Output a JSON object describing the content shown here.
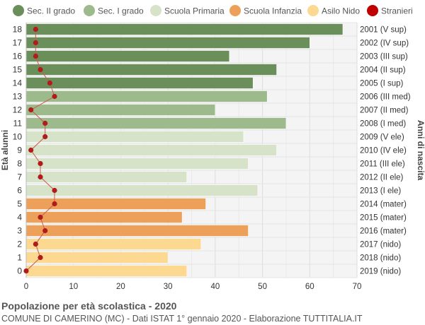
{
  "chart_data": {
    "type": "bar",
    "orientation": "horizontal",
    "title": "Popolazione per età scolastica - 2020",
    "subtitle": "COMUNE DI CAMERINO (MC) - Dati ISTAT 1° gennaio 2020 - Elaborazione TUTTITALIA.IT",
    "ylabel_left": "Età alunni",
    "ylabel_right": "Anni di nascita",
    "xlim": [
      0,
      70
    ],
    "xticks": [
      0,
      10,
      20,
      30,
      40,
      50,
      60,
      70
    ],
    "grid": true,
    "legend_position": "top",
    "legend": [
      {
        "name": "Sec. II grado",
        "color": "#6b8f5a"
      },
      {
        "name": "Sec. I grado",
        "color": "#9dba8c"
      },
      {
        "name": "Scuola Primaria",
        "color": "#d6e3c8"
      },
      {
        "name": "Scuola Infanzia",
        "color": "#eda05a"
      },
      {
        "name": "Asilo Nido",
        "color": "#fcd890"
      },
      {
        "name": "Stranieri",
        "color": "#c00000"
      }
    ],
    "ages": [
      18,
      17,
      16,
      15,
      14,
      13,
      12,
      11,
      10,
      9,
      8,
      7,
      6,
      5,
      4,
      3,
      2,
      1,
      0
    ],
    "birth_years": [
      "2001 (V sup)",
      "2002 (IV sup)",
      "2003 (III sup)",
      "2004 (II sup)",
      "2005 (I sup)",
      "2006 (III med)",
      "2007 (II med)",
      "2008 (I med)",
      "2009 (V ele)",
      "2010 (IV ele)",
      "2011 (III ele)",
      "2012 (II ele)",
      "2013 (I ele)",
      "2014 (mater)",
      "2015 (mater)",
      "2016 (mater)",
      "2017 (nido)",
      "2018 (nido)",
      "2019 (nido)"
    ],
    "values": [
      67,
      60,
      43,
      53,
      48,
      51,
      40,
      55,
      46,
      53,
      47,
      34,
      49,
      38,
      33,
      47,
      37,
      30,
      34
    ],
    "stranieri": [
      2,
      2,
      2,
      3,
      5,
      6,
      1,
      4,
      4,
      1,
      3,
      3,
      6,
      6,
      3,
      4,
      2,
      3,
      0
    ],
    "categories": [
      "Sec. II grado",
      "Sec. II grado",
      "Sec. II grado",
      "Sec. II grado",
      "Sec. II grado",
      "Sec. I grado",
      "Sec. I grado",
      "Sec. I grado",
      "Scuola Primaria",
      "Scuola Primaria",
      "Scuola Primaria",
      "Scuola Primaria",
      "Scuola Primaria",
      "Scuola Infanzia",
      "Scuola Infanzia",
      "Scuola Infanzia",
      "Asilo Nido",
      "Asilo Nido",
      "Asilo Nido"
    ]
  }
}
